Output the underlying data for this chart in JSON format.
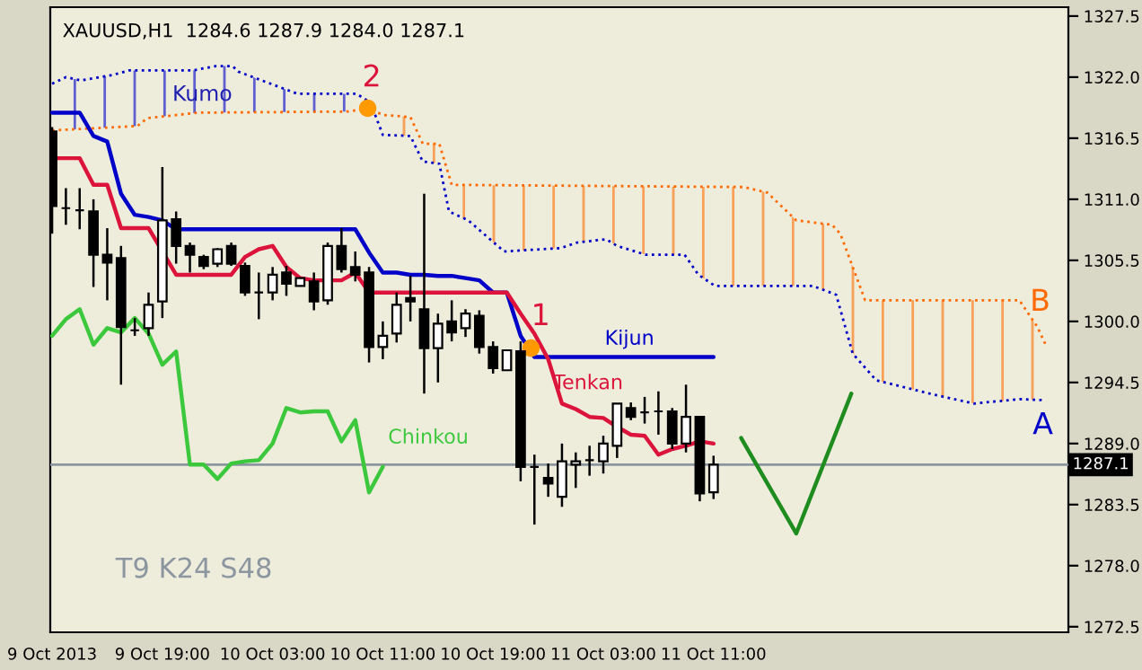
{
  "chart_data": {
    "type": "candlestick",
    "title": "XAUUSD,H1  1284.6 1287.9 1284.0 1287.1",
    "x": [
      "2013-10-09T11:00",
      "2013-10-09T12:00",
      "2013-10-09T13:00",
      "2013-10-09T14:00",
      "2013-10-09T15:00",
      "2013-10-09T16:00",
      "2013-10-09T17:00",
      "2013-10-09T18:00",
      "2013-10-09T19:00",
      "2013-10-09T20:00",
      "2013-10-09T21:00",
      "2013-10-09T22:00",
      "2013-10-09T23:00",
      "2013-10-10T00:00",
      "2013-10-10T01:00",
      "2013-10-10T02:00",
      "2013-10-10T03:00",
      "2013-10-10T04:00",
      "2013-10-10T05:00",
      "2013-10-10T06:00",
      "2013-10-10T07:00",
      "2013-10-10T08:00",
      "2013-10-10T09:00",
      "2013-10-10T10:00",
      "2013-10-10T11:00",
      "2013-10-10T12:00",
      "2013-10-10T13:00",
      "2013-10-10T14:00",
      "2013-10-10T15:00",
      "2013-10-10T16:00",
      "2013-10-10T17:00",
      "2013-10-10T18:00",
      "2013-10-10T19:00",
      "2013-10-10T20:00",
      "2013-10-10T21:00",
      "2013-10-10T22:00",
      "2013-10-10T23:00",
      "2013-10-11T00:00",
      "2013-10-11T01:00",
      "2013-10-11T02:00",
      "2013-10-11T03:00",
      "2013-10-11T04:00",
      "2013-10-11T05:00",
      "2013-10-11T06:00",
      "2013-10-11T07:00",
      "2013-10-11T08:00",
      "2013-10-11T09:00",
      "2013-10-11T10:00",
      "2013-10-11T11:00"
    ],
    "ohlc": [
      [
        1317.1,
        1317.5,
        1307.9,
        1310.4
      ],
      [
        1310.2,
        1312.0,
        1308.7,
        1310.2
      ],
      [
        1310.0,
        1312.0,
        1308.3,
        1310.0
      ],
      [
        1309.9,
        1311.0,
        1303.1,
        1306.0
      ],
      [
        1306.0,
        1308.4,
        1301.9,
        1305.3
      ],
      [
        1305.7,
        1306.8,
        1294.3,
        1299.5
      ],
      [
        1299.2,
        1300.3,
        1298.7,
        1299.2
      ],
      [
        1299.4,
        1302.6,
        1298.7,
        1301.5
      ],
      [
        1301.8,
        1313.9,
        1300.3,
        1309.1
      ],
      [
        1309.2,
        1309.9,
        1305.2,
        1306.8
      ],
      [
        1306.8,
        1307.1,
        1304.4,
        1306.0
      ],
      [
        1305.8,
        1306.0,
        1304.7,
        1305.0
      ],
      [
        1305.2,
        1306.6,
        1304.9,
        1306.5
      ],
      [
        1306.8,
        1307.1,
        1305.0,
        1305.2
      ],
      [
        1305.0,
        1305.3,
        1302.3,
        1302.6
      ],
      [
        1302.6,
        1304.4,
        1300.2,
        1302.6
      ],
      [
        1302.6,
        1304.9,
        1301.9,
        1304.2
      ],
      [
        1304.4,
        1305.0,
        1302.3,
        1303.4
      ],
      [
        1303.2,
        1303.9,
        1303.2,
        1303.9
      ],
      [
        1303.6,
        1304.4,
        1301.0,
        1301.8
      ],
      [
        1301.9,
        1307.1,
        1301.5,
        1306.8
      ],
      [
        1306.8,
        1308.4,
        1304.4,
        1304.7
      ],
      [
        1304.9,
        1306.3,
        1303.6,
        1304.2
      ],
      [
        1304.4,
        1304.9,
        1296.3,
        1297.7
      ],
      [
        1297.7,
        1300.0,
        1296.6,
        1298.7
      ],
      [
        1298.9,
        1302.6,
        1298.1,
        1301.5
      ],
      [
        1302.1,
        1304.1,
        1300.0,
        1301.8
      ],
      [
        1301.1,
        1311.5,
        1293.5,
        1297.6
      ],
      [
        1297.6,
        1300.7,
        1294.5,
        1299.8
      ],
      [
        1300.0,
        1301.9,
        1298.2,
        1299.0
      ],
      [
        1299.4,
        1301.1,
        1298.6,
        1300.7
      ],
      [
        1300.5,
        1301.0,
        1297.1,
        1297.7
      ],
      [
        1297.7,
        1298.2,
        1295.3,
        1295.8
      ],
      [
        1295.6,
        1297.4,
        1295.6,
        1297.4
      ],
      [
        1297.3,
        1298.2,
        1285.6,
        1286.9
      ],
      [
        1286.9,
        1288.0,
        1281.7,
        1286.9
      ],
      [
        1285.9,
        1287.2,
        1284.2,
        1285.4
      ],
      [
        1284.2,
        1289.0,
        1283.3,
        1287.4
      ],
      [
        1287.1,
        1288.2,
        1285.0,
        1287.4
      ],
      [
        1287.5,
        1288.8,
        1286.1,
        1287.5
      ],
      [
        1287.4,
        1289.7,
        1286.3,
        1289.0
      ],
      [
        1288.8,
        1292.6,
        1287.7,
        1292.6
      ],
      [
        1292.2,
        1292.7,
        1291.1,
        1291.4
      ],
      [
        1291.8,
        1293.2,
        1290.8,
        1291.8
      ],
      [
        1291.9,
        1293.7,
        1289.8,
        1291.9
      ],
      [
        1291.9,
        1292.2,
        1288.5,
        1289.0
      ],
      [
        1289.0,
        1294.3,
        1288.2,
        1291.4
      ],
      [
        1291.4,
        1291.4,
        1283.8,
        1284.5
      ],
      [
        1284.6,
        1287.9,
        1284.0,
        1287.1
      ]
    ],
    "series": [
      {
        "name": "B",
        "type": "line",
        "line_style": "dotted",
        "color": "#ff6a00",
        "x": [
          "2013-10-09T11:00",
          "2013-10-09T17:12",
          "2013-10-09T17:54",
          "2013-10-09T21:36",
          "2013-10-10T08:30",
          "2013-10-10T09:54",
          "2013-10-10T11:00",
          "2013-10-10T13:00",
          "2013-10-10T13:54",
          "2013-10-10T15:06",
          "2013-10-10T16:00",
          "2013-10-11T13:12",
          "2013-10-11T14:54",
          "2013-10-11T17:00",
          "2013-10-11T19:36",
          "2013-10-11T20:12",
          "2013-10-11T22:00",
          "2013-10-12T09:12",
          "2013-10-12T10:30",
          "2013-10-12T11:06"
        ],
        "values": [
          1317.2,
          1317.6,
          1318.3,
          1318.8,
          1318.9,
          1319.2,
          1318.6,
          1318.4,
          1316.0,
          1316.0,
          1312.3,
          1312.1,
          1311.6,
          1309.1,
          1308.7,
          1307.9,
          1301.9,
          1301.9,
          1299.5,
          1297.9
        ]
      },
      {
        "name": "A",
        "type": "line",
        "line_style": "dotted",
        "color": "#0000c8",
        "x": [
          "2013-10-09T11:00",
          "2013-10-09T12:00",
          "2013-10-09T13:06",
          "2013-10-09T15:24",
          "2013-10-09T16:36",
          "2013-10-09T21:12",
          "2013-10-09T22:54",
          "2013-10-10T00:06",
          "2013-10-10T00:30",
          "2013-10-10T04:48",
          "2013-10-10T09:06",
          "2013-10-10T10:06",
          "2013-10-10T11:00",
          "2013-10-10T13:00",
          "2013-10-10T13:54",
          "2013-10-10T15:06",
          "2013-10-10T15:48",
          "2013-10-10T17:12",
          "2013-10-10T19:48",
          "2013-10-10T23:54",
          "2013-10-11T01:06",
          "2013-10-11T03:12",
          "2013-10-11T04:00",
          "2013-10-11T06:06",
          "2013-10-11T08:54",
          "2013-10-11T09:54",
          "2013-10-11T11:06",
          "2013-10-11T18:12",
          "2013-10-11T19:54",
          "2013-10-11T21:06",
          "2013-10-11T22:48",
          "2013-10-12T03:00",
          "2013-10-12T05:54",
          "2013-10-12T09:12",
          "2013-10-12T11:06"
        ],
        "values": [
          1321.4,
          1322.0,
          1321.7,
          1322.2,
          1322.6,
          1322.6,
          1323.0,
          1323.0,
          1322.5,
          1320.5,
          1320.5,
          1319.7,
          1316.8,
          1316.7,
          1314.4,
          1314.2,
          1309.9,
          1309.1,
          1306.3,
          1306.6,
          1307.1,
          1307.4,
          1306.8,
          1306.0,
          1306.0,
          1304.2,
          1303.2,
          1303.2,
          1302.4,
          1297.1,
          1294.7,
          1293.4,
          1292.6,
          1293.0,
          1292.9
        ]
      },
      {
        "name": "Chinkou",
        "type": "line",
        "color": "#3cc83c",
        "x": [
          "2013-10-09T11:00",
          "2013-10-09T12:00",
          "2013-10-09T13:00",
          "2013-10-09T14:00",
          "2013-10-09T15:00",
          "2013-10-09T16:00",
          "2013-10-09T17:00",
          "2013-10-09T18:00",
          "2013-10-09T19:00",
          "2013-10-09T20:00",
          "2013-10-09T21:00",
          "2013-10-09T22:00",
          "2013-10-09T23:00",
          "2013-10-10T00:00",
          "2013-10-10T01:00",
          "2013-10-10T02:00",
          "2013-10-10T03:00",
          "2013-10-10T04:00",
          "2013-10-10T05:00",
          "2013-10-10T06:00",
          "2013-10-10T07:00",
          "2013-10-10T08:00",
          "2013-10-10T09:00",
          "2013-10-10T10:00",
          "2013-10-10T11:00"
        ],
        "values": [
          1298.7,
          1300.2,
          1301.1,
          1297.9,
          1299.4,
          1299.0,
          1300.3,
          1298.9,
          1296.1,
          1297.3,
          1287.1,
          1287.1,
          1285.8,
          1287.2,
          1287.4,
          1287.5,
          1289.0,
          1292.2,
          1291.8,
          1291.9,
          1291.9,
          1289.2,
          1291.1,
          1284.6,
          1286.9
        ]
      },
      {
        "name": "Kijun",
        "type": "line",
        "color": "#0000c8",
        "values": [
          1318.8,
          1318.8,
          1318.8,
          1316.7,
          1316.2,
          1311.5,
          1309.6,
          1309.4,
          1309.1,
          1308.3,
          1308.3,
          1308.3,
          1308.3,
          1308.3,
          1308.3,
          1308.3,
          1308.3,
          1308.3,
          1308.3,
          1308.3,
          1308.3,
          1308.3,
          1308.3,
          1306.2,
          1304.4,
          1304.4,
          1304.2,
          1304.2,
          1304.1,
          1304.1,
          1303.9,
          1303.7,
          1302.6,
          1302.6,
          1298.7,
          1296.8,
          1296.8,
          1296.8,
          1296.8,
          1296.8,
          1296.8,
          1296.8,
          1296.8,
          1296.8,
          1296.8,
          1296.8,
          1296.8,
          1296.8,
          1296.8
        ]
      },
      {
        "name": "Tenkan",
        "type": "line",
        "color": "#dc143c",
        "values": [
          1314.7,
          1314.7,
          1314.7,
          1312.3,
          1312.3,
          1308.4,
          1308.4,
          1308.4,
          1306.3,
          1304.2,
          1304.2,
          1304.2,
          1304.2,
          1304.2,
          1305.8,
          1306.5,
          1306.8,
          1304.9,
          1303.9,
          1303.7,
          1303.7,
          1303.7,
          1304.4,
          1302.6,
          1302.6,
          1302.6,
          1302.6,
          1302.6,
          1302.6,
          1302.6,
          1302.6,
          1302.6,
          1302.6,
          1302.6,
          1300.7,
          1298.9,
          1296.6,
          1292.6,
          1292.1,
          1291.4,
          1291.3,
          1290.5,
          1289.8,
          1289.7,
          1288.0,
          1288.5,
          1288.8,
          1289.2,
          1289.0
        ]
      },
      {
        "type": "line",
        "color": "#1e8c1e",
        "x": [
          "2013-10-11T13:00",
          "2013-10-11T17:00",
          "2013-10-11T21:00"
        ],
        "values": [
          1289.5,
          1280.9,
          1293.5
        ]
      },
      {
        "type": "scatter",
        "marker": "circle",
        "color": "#ff9900",
        "x": [
          "2013-10-10T09:54",
          "2013-10-10T21:45"
        ],
        "values": [
          1319.2,
          1297.6
        ]
      }
    ],
    "annotations": [
      {
        "text": "2",
        "x": "2013-10-10T09:54",
        "y": 1319.2
      },
      {
        "text": "1",
        "x": "2013-10-10T21:45",
        "y": 1297.6
      },
      "Kumo",
      "T9 K24 S48"
    ],
    "ref_lines": [
      {
        "axis": "y",
        "value": 1287.1,
        "label": "1287.1",
        "color": "#8c96a0"
      }
    ],
    "xlim": [
      "2013-10-09T10:52",
      "2013-10-12T12:45"
    ],
    "ylim": [
      1272.0,
      1328.3
    ],
    "xticks": [
      {
        "value": "2013-10-09T11:00",
        "label": "9 Oct 2013"
      },
      {
        "value": "2013-10-09T19:00",
        "label": "9 Oct 19:00"
      },
      {
        "value": "2013-10-10T03:00",
        "label": "10 Oct 03:00"
      },
      {
        "value": "2013-10-10T11:00",
        "label": "10 Oct 11:00"
      },
      {
        "value": "2013-10-10T19:00",
        "label": "10 Oct 19:00"
      },
      {
        "value": "2013-10-11T03:00",
        "label": "11 Oct 03:00"
      },
      {
        "value": "2013-10-11T11:00",
        "label": "11 Oct 11:00"
      }
    ],
    "yticks": [
      1272.5,
      {
        "value": 1278,
        "label": "1278.0"
      },
      1283.5,
      {
        "value": 1289,
        "label": "1289.0"
      },
      1294.5,
      {
        "value": 1300,
        "label": "1300.0"
      },
      1305.5,
      {
        "value": 1311,
        "label": "1311.0"
      },
      1316.5,
      {
        "value": 1322,
        "label": "1322.0"
      },
      1327.5
    ],
    "grid": false,
    "legend": false
  }
}
